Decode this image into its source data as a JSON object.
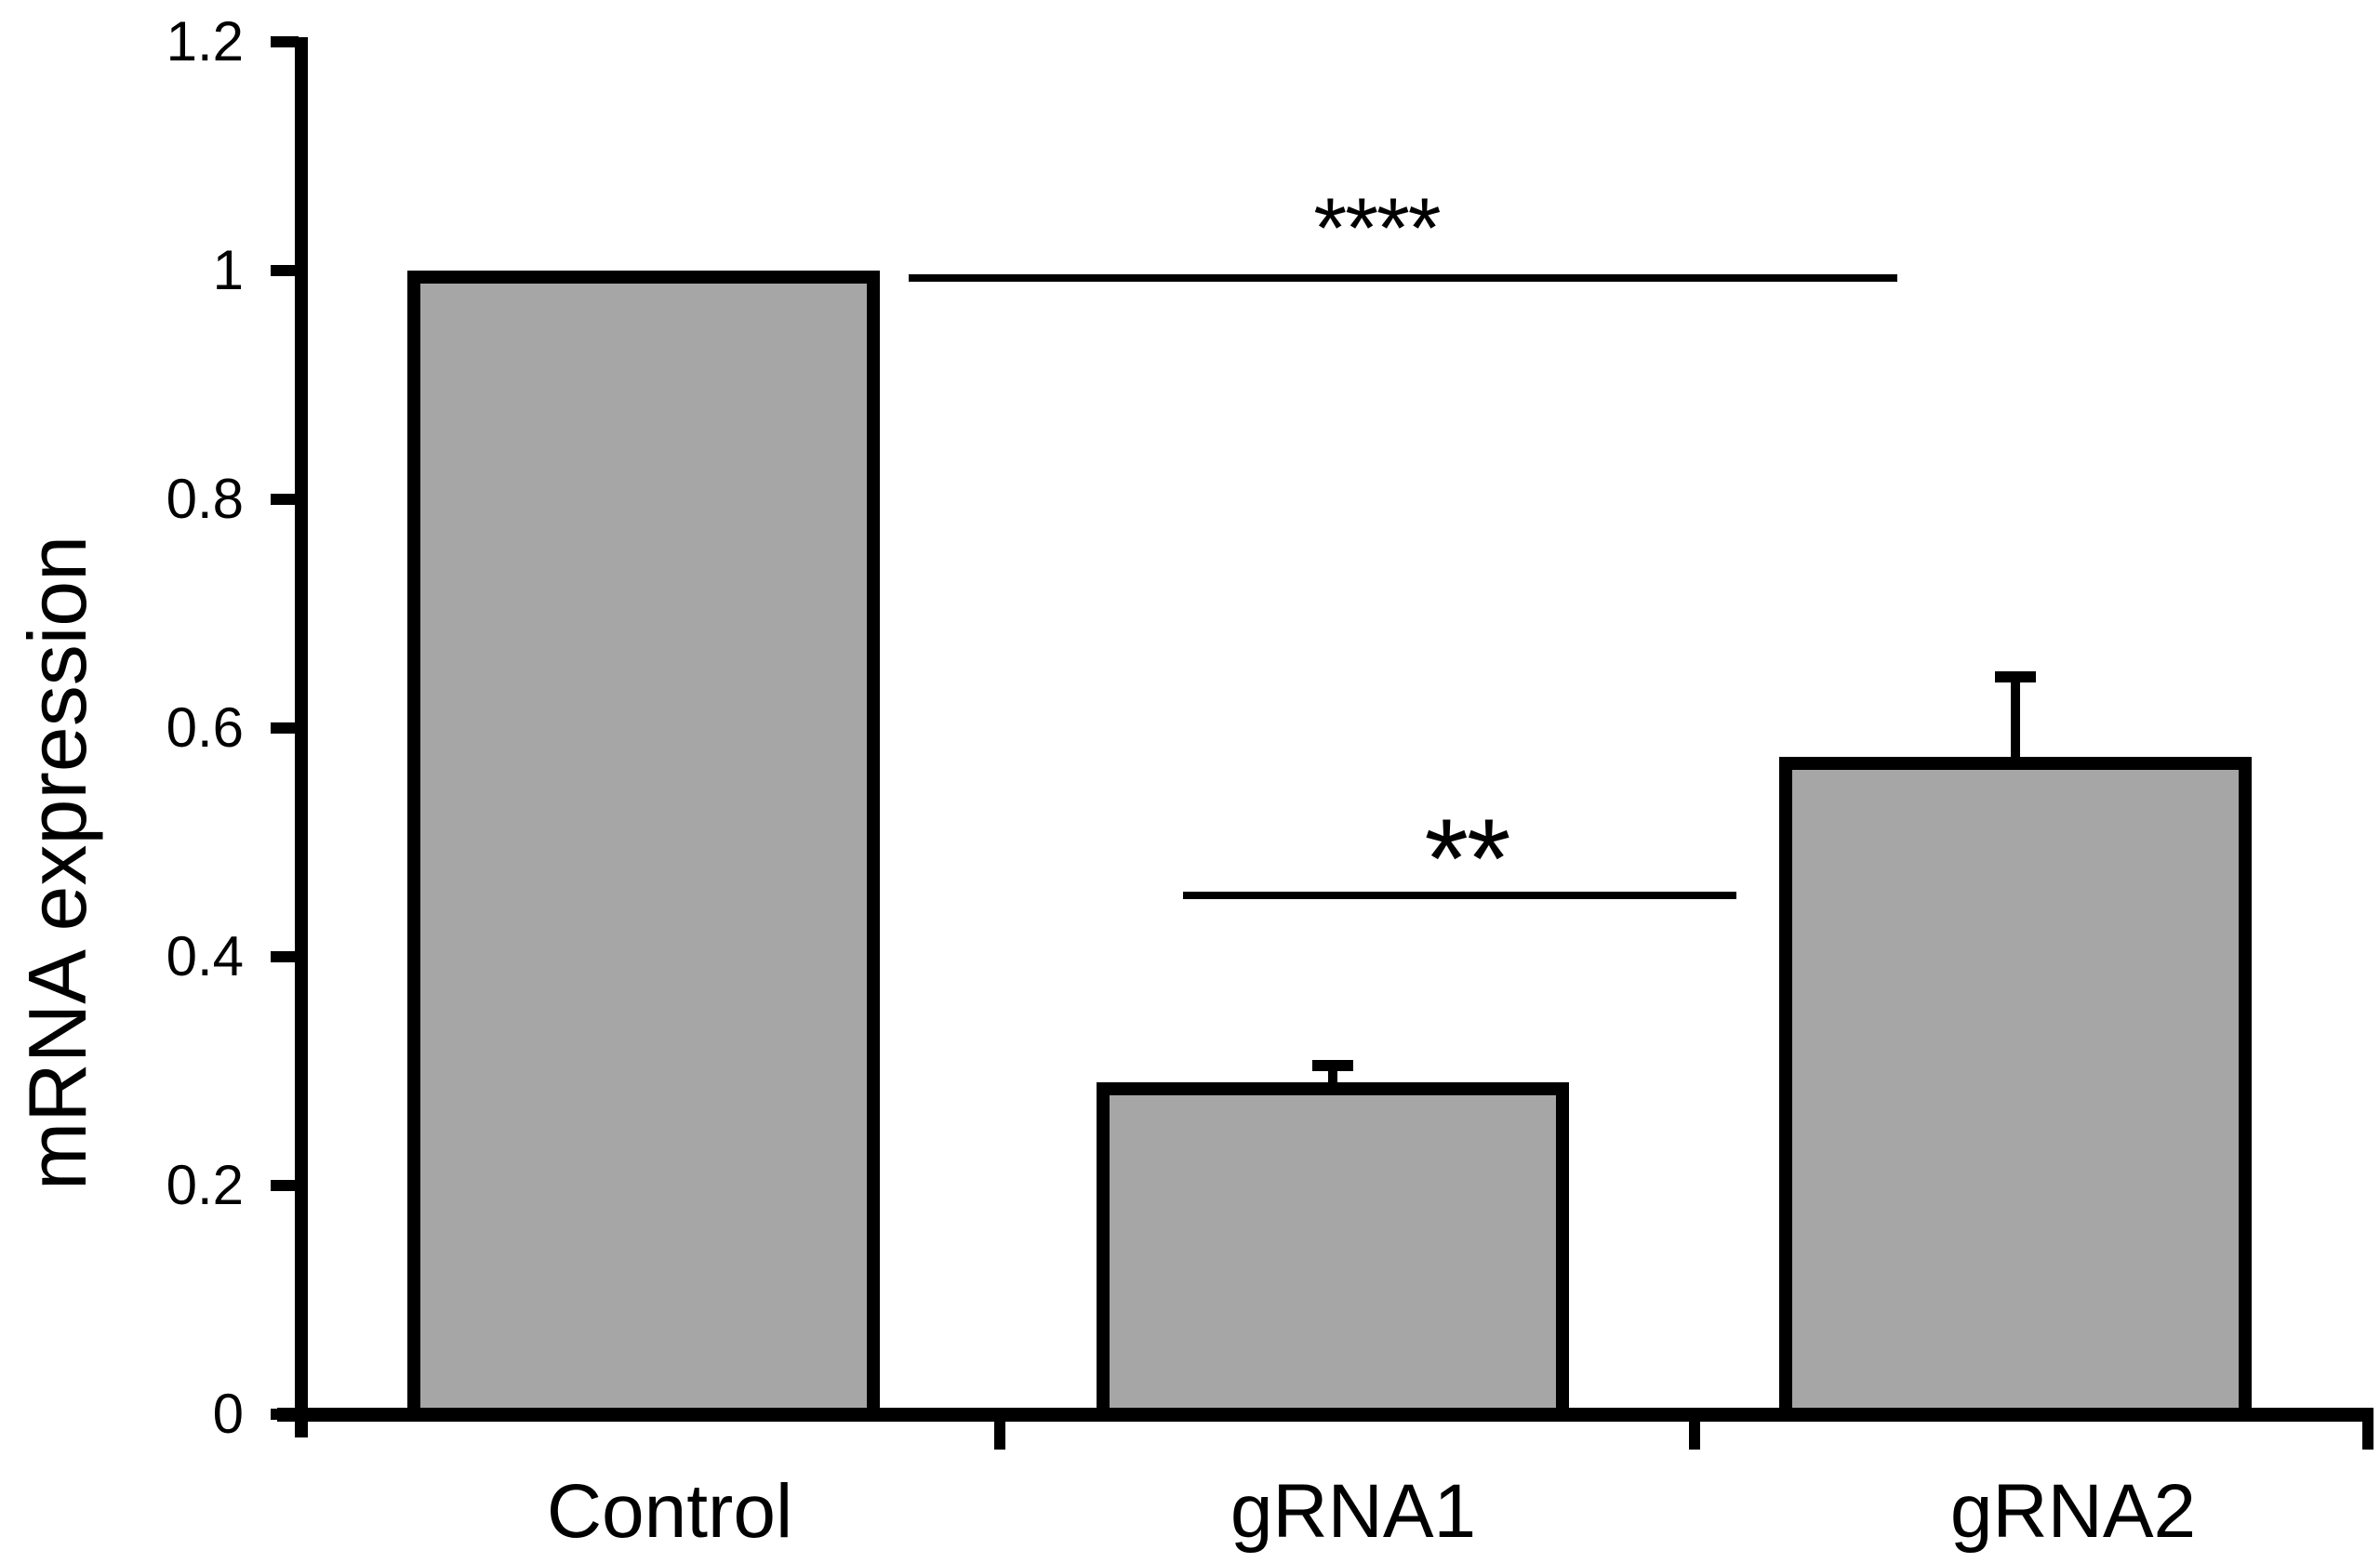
{
  "chart_data": {
    "type": "bar",
    "title": "",
    "xlabel": "",
    "ylabel": "mRNA expression",
    "categories": [
      "Control",
      "gRNA1",
      "gRNA2"
    ],
    "values": [
      1.0,
      0.29,
      0.575
    ],
    "errors_upper": [
      0,
      0.015,
      0.07
    ],
    "ylim": [
      0,
      1.2
    ],
    "yticks": [
      {
        "label": "1.2",
        "value": 1.2
      },
      {
        "label": "1",
        "value": 1.0
      },
      {
        "label": "0.8",
        "value": 0.8
      },
      {
        "label": "0.6",
        "value": 0.6
      },
      {
        "label": "0.4",
        "value": 0.4
      },
      {
        "label": "0.2",
        "value": 0.2
      },
      {
        "label": "0",
        "value": 0
      }
    ],
    "grid": false,
    "legend_position": "none",
    "bar_color": "#a6a6a6",
    "bar_border_color": "#000000",
    "axis_color": "#000000",
    "error_bar_style": "upper whisker with cap",
    "annotations": [
      {
        "type": "significance-line",
        "label": "****",
        "between": [
          "Control",
          "gRNA2"
        ],
        "line_y_value": 1.0
      },
      {
        "type": "significance-line",
        "label": "**",
        "between": [
          "gRNA1",
          "gRNA2"
        ],
        "line_y_value": 0.46
      }
    ]
  }
}
